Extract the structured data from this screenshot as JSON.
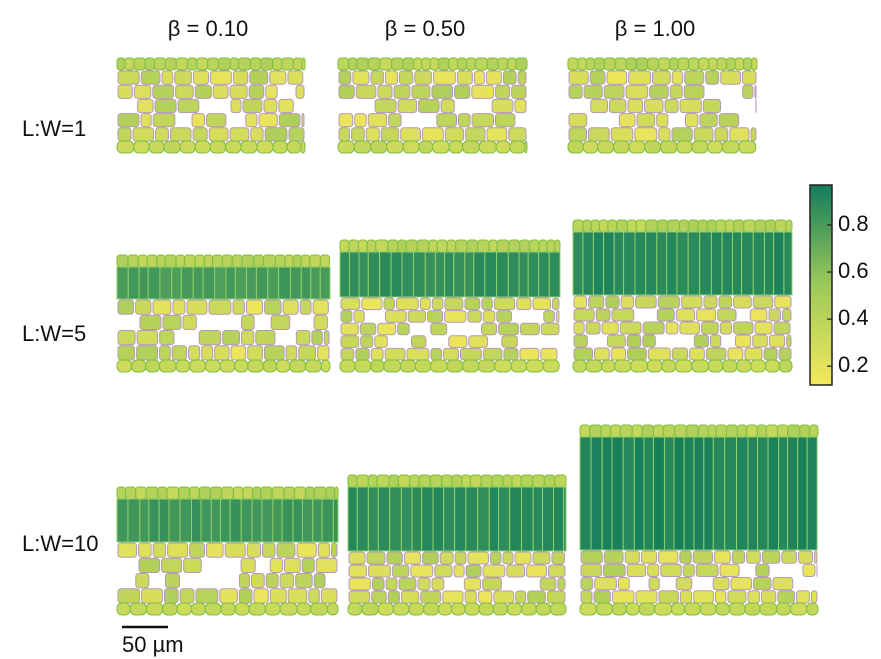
{
  "column_labels": [
    "β = 0.10",
    "β = 0.50",
    "β = 1.00"
  ],
  "row_labels": [
    "L:W=1",
    "L:W=5",
    "L:W=10"
  ],
  "colorbar": {
    "lim": [
      0.12,
      0.97
    ],
    "ticks": [
      0.2,
      0.4,
      0.6,
      0.8
    ]
  },
  "scale_bar": {
    "label": "50 µm"
  }
}
